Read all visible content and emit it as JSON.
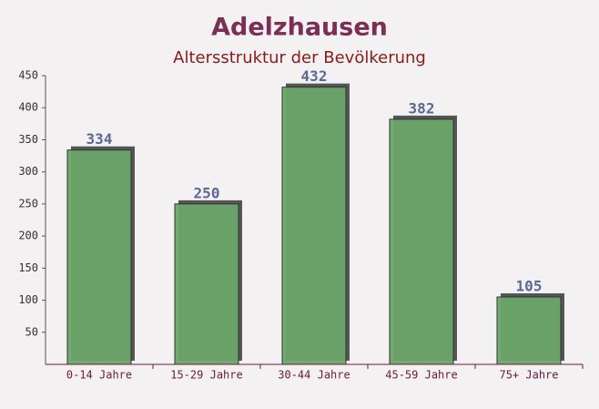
{
  "chart_data": {
    "type": "bar",
    "title": "Adelzhausen",
    "subtitle": "Altersstruktur der Bevölkerung",
    "categories": [
      "0-14 Jahre",
      "15-29 Jahre",
      "30-44 Jahre",
      "45-59 Jahre",
      "75+ Jahre"
    ],
    "values": [
      334,
      250,
      432,
      382,
      105
    ],
    "color": "#6aa56a",
    "ylim": [
      0,
      450
    ],
    "yticks": [
      50,
      100,
      150,
      200,
      250,
      300,
      350,
      400,
      450
    ],
    "grid": false
  }
}
